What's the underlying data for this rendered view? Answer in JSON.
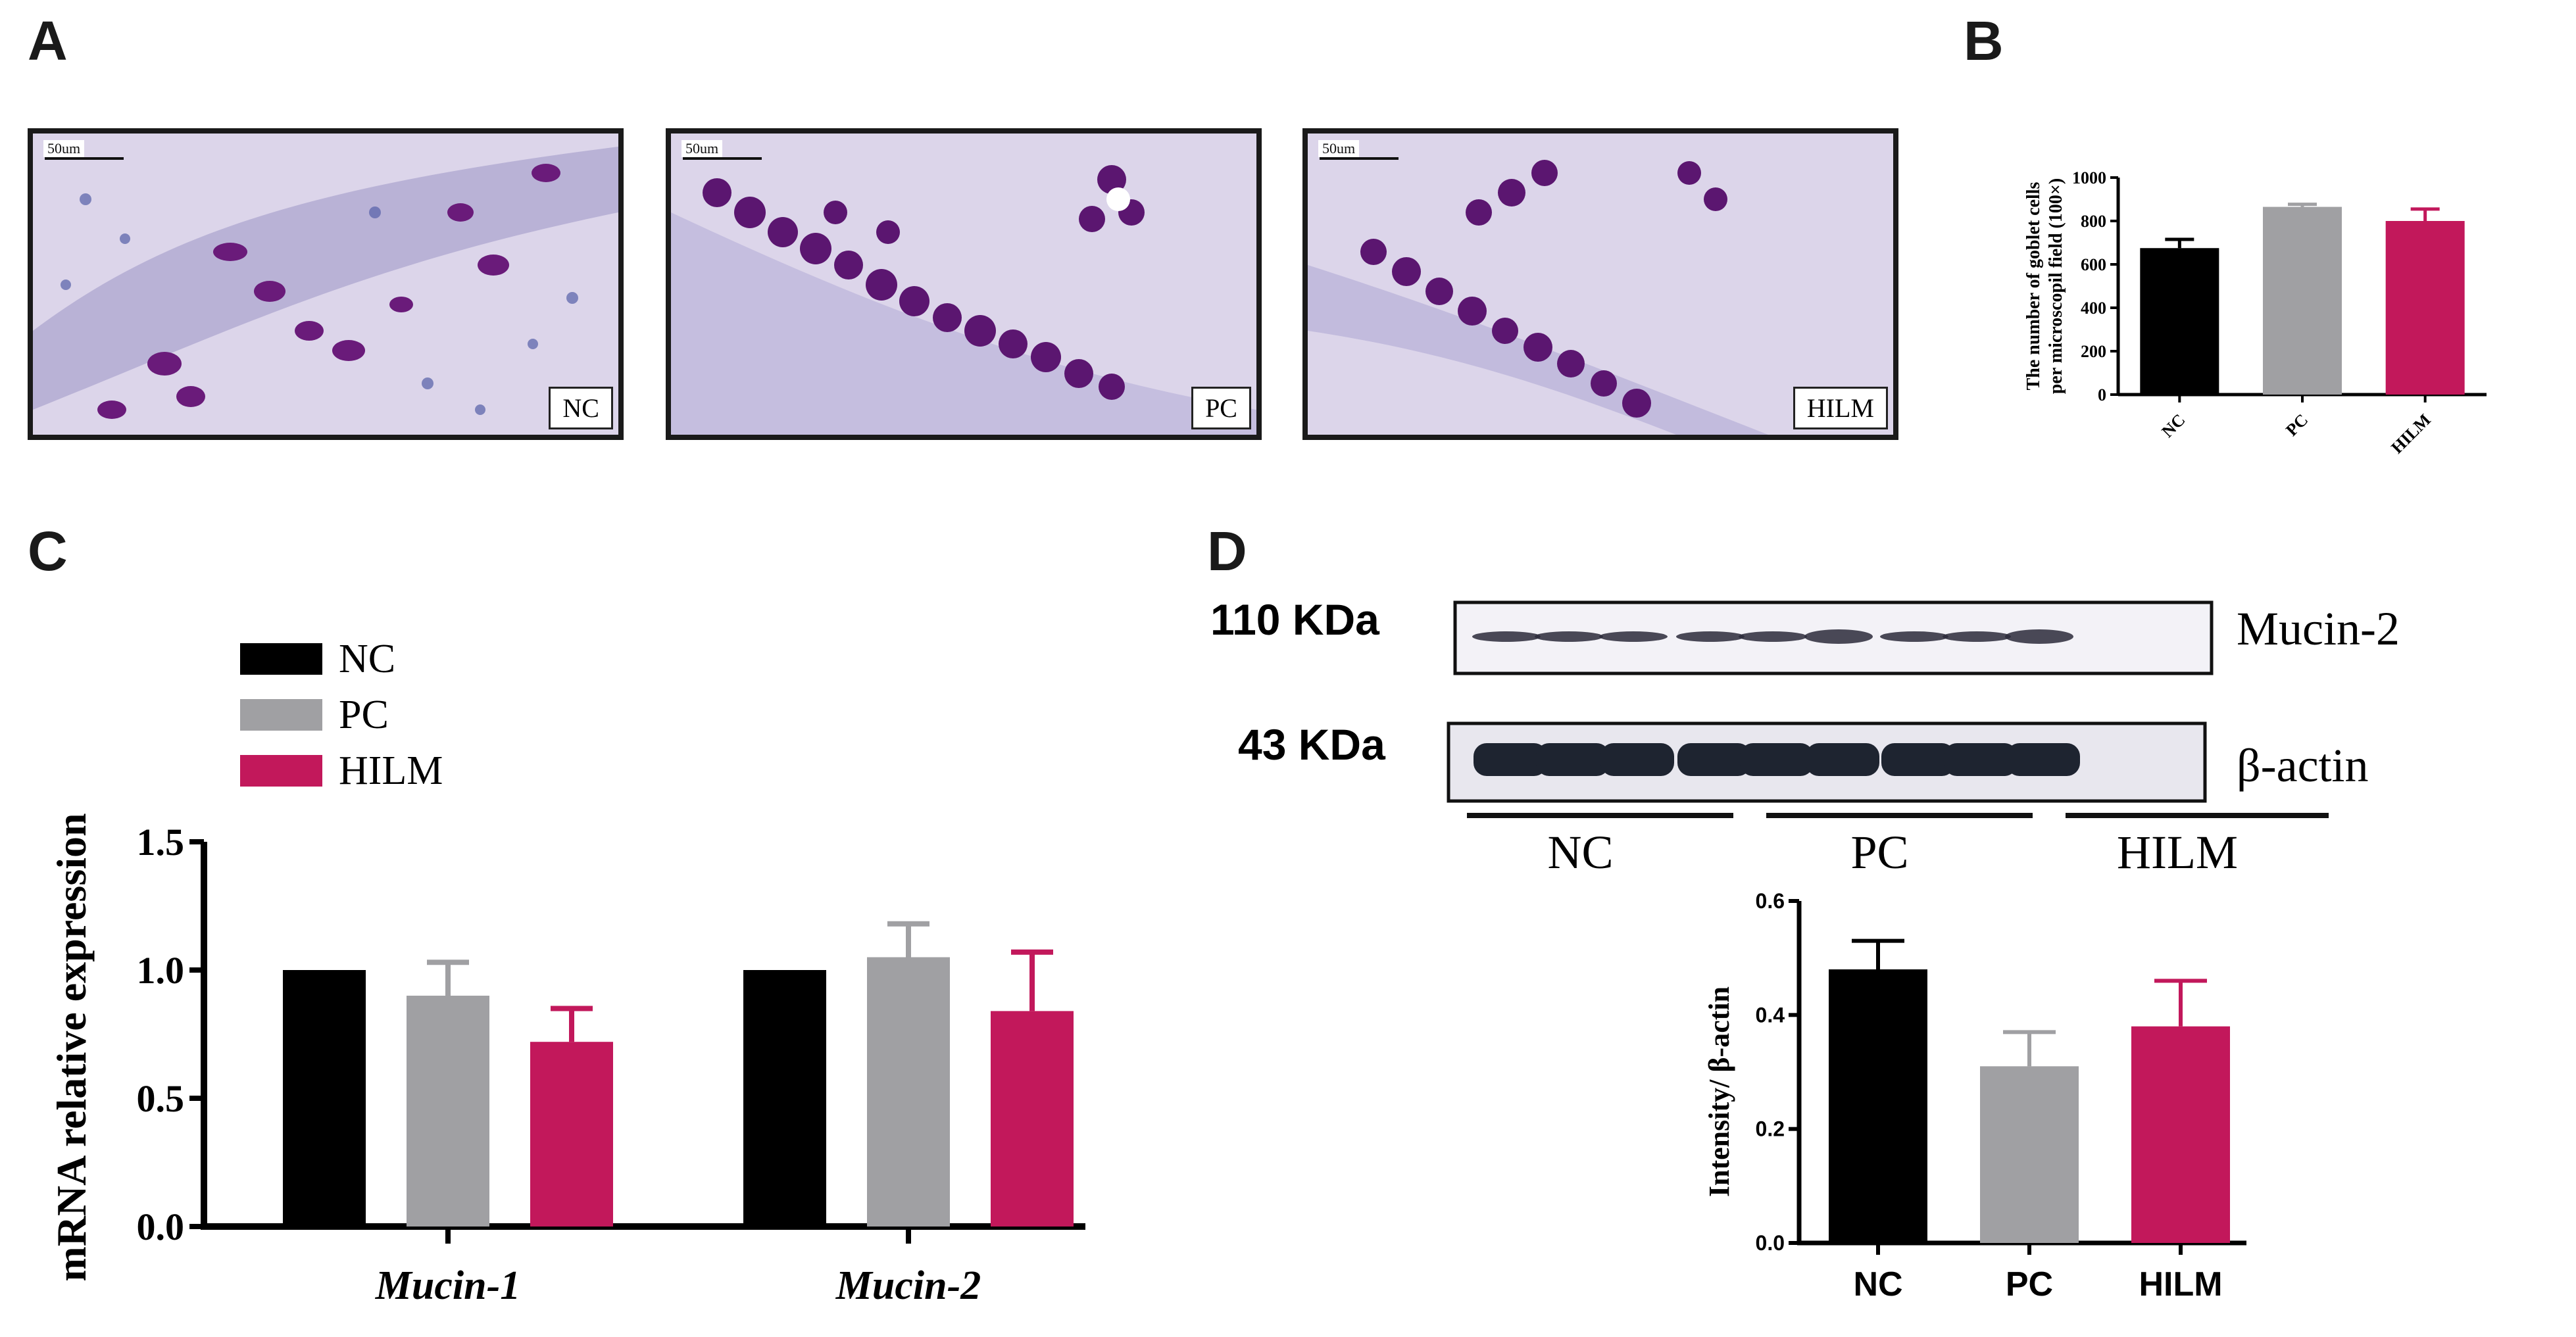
{
  "panel_labels": {
    "a": "A",
    "b": "B",
    "c": "C",
    "d": "D"
  },
  "micrographs": [
    {
      "tag": "NC",
      "scale": "50um"
    },
    {
      "tag": "PC",
      "scale": "50um"
    },
    {
      "tag": "HILM",
      "scale": "50um"
    }
  ],
  "colors": {
    "NC": "#000000",
    "PC": "#a0a0a3",
    "HILM": "#c2185b"
  },
  "blot": {
    "rows": [
      {
        "kda": "110 KDa",
        "protein": "Mucin-2"
      },
      {
        "kda": "43 KDa",
        "protein": "β-actin"
      }
    ],
    "groups": [
      "NC",
      "PC",
      "HILM"
    ]
  },
  "chart_data": [
    {
      "id": "B",
      "type": "bar",
      "categories": [
        "NC",
        "PC",
        "HILM"
      ],
      "values": [
        675,
        865,
        800
      ],
      "errors": [
        40,
        12,
        55
      ],
      "ylabel_line1": "The number of goblet cells",
      "ylabel_line2": "per microscopil field (100×)",
      "ylim": [
        0,
        1000
      ],
      "yticks": [
        "0",
        "200",
        "400",
        "600",
        "800",
        "1000"
      ],
      "legend": false
    },
    {
      "id": "C",
      "type": "bar",
      "categories": [
        "Mucin-1",
        "Mucin-2"
      ],
      "series": [
        {
          "name": "NC",
          "values": [
            1.0,
            1.0
          ],
          "errors": [
            0,
            0
          ]
        },
        {
          "name": "PC",
          "values": [
            0.9,
            1.05
          ],
          "errors": [
            0.13,
            0.13
          ]
        },
        {
          "name": "HILM",
          "values": [
            0.72,
            0.84
          ],
          "errors": [
            0.13,
            0.23
          ]
        }
      ],
      "ylabel": "mRNA relative expression",
      "ylim": [
        0,
        1.5
      ],
      "yticks": [
        "0.0",
        "0.5",
        "1.0",
        "1.5"
      ],
      "legend": "top-left"
    },
    {
      "id": "D",
      "type": "bar",
      "categories": [
        "NC",
        "PC",
        "HILM"
      ],
      "values": [
        0.48,
        0.31,
        0.38
      ],
      "errors": [
        0.05,
        0.06,
        0.08
      ],
      "ylabel": "Intensity/ β-actin",
      "ylim": [
        0,
        0.6
      ],
      "yticks": [
        "0.0",
        "0.2",
        "0.4",
        "0.6"
      ],
      "legend": false
    }
  ]
}
